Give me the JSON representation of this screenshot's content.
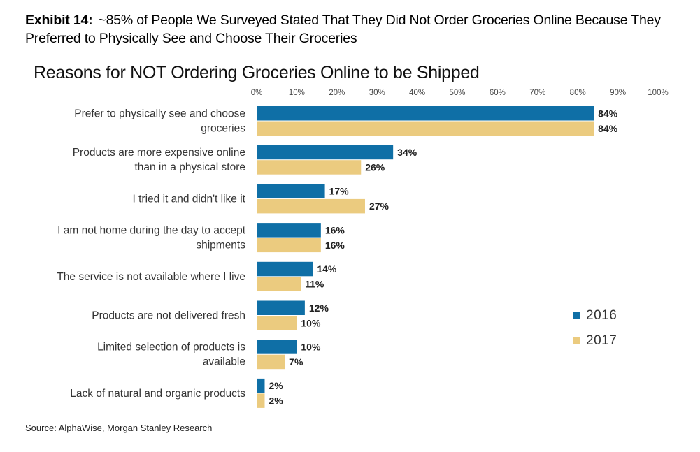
{
  "exhibit": {
    "label": "Exhibit 14:",
    "text": "~85% of People We Surveyed Stated That They Did Not Order Groceries Online Because They Preferred to Physically See and Choose Their Groceries"
  },
  "source": "Source: AlphaWise, Morgan Stanley Research",
  "chart_data": {
    "type": "bar",
    "orientation": "horizontal",
    "title": "Reasons for NOT Ordering Groceries Online to be Shipped",
    "xlim": [
      0,
      100
    ],
    "x_ticks": [
      "0%",
      "10%",
      "20%",
      "30%",
      "40%",
      "50%",
      "60%",
      "70%",
      "80%",
      "90%",
      "100%"
    ],
    "x_axis_position": "top",
    "grid": false,
    "legend_position": "right",
    "categories": [
      [
        "Prefer to physically see and choose",
        "groceries"
      ],
      [
        "Products are more expensive online",
        "than in a physical store"
      ],
      [
        "I tried it and didn't like it"
      ],
      [
        "I am not home during the day to accept",
        "shipments"
      ],
      [
        "The service is not available where I live"
      ],
      [
        "Products are not delivered fresh"
      ],
      [
        "Limited selection of products is",
        "available"
      ],
      [
        "Lack of natural and organic products"
      ]
    ],
    "series": [
      {
        "name": "2016",
        "color": "#0f6fa6",
        "values": [
          84,
          34,
          17,
          16,
          14,
          12,
          10,
          2
        ]
      },
      {
        "name": "2017",
        "color": "#ebcb7f",
        "values": [
          84,
          26,
          27,
          16,
          11,
          10,
          7,
          2
        ]
      }
    ],
    "value_suffix": "%"
  }
}
